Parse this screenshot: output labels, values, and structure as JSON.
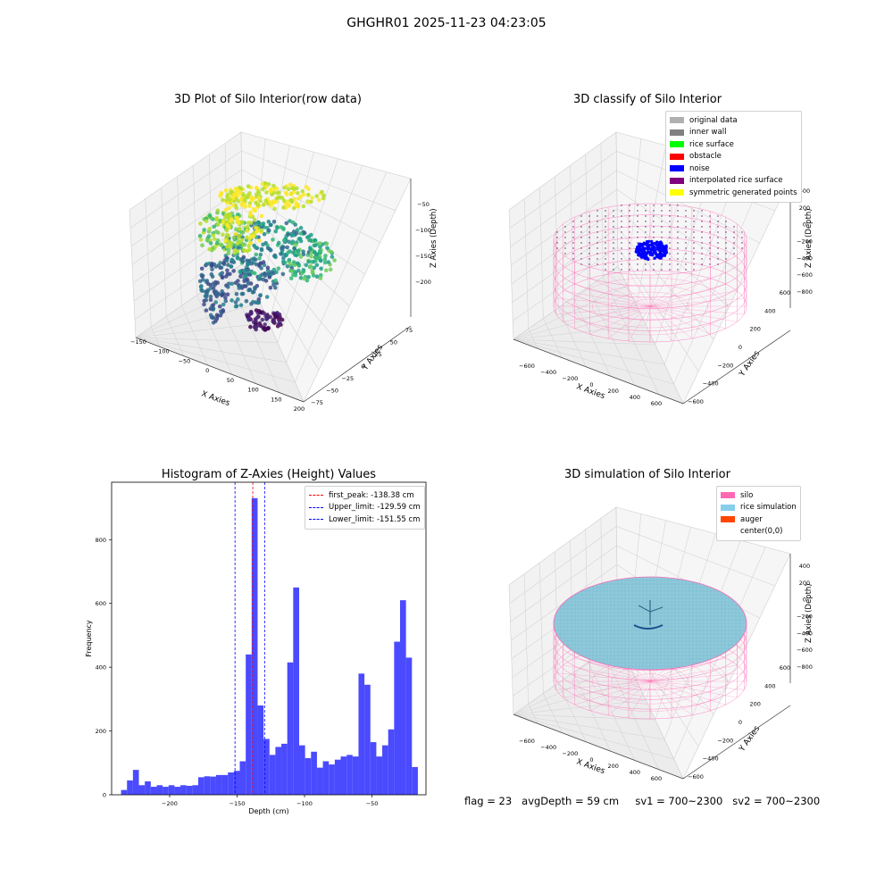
{
  "figure": {
    "title": "GHGHR01 2025-11-23 04:23:05"
  },
  "panel_raw": {
    "title": "3D Plot of Silo Interior(row data)",
    "xlabel": "X Axies",
    "ylabel": "Y Axies",
    "zlabel": "Z Axies (Depth)",
    "x_ticks": [
      "−150",
      "−100",
      "−50",
      "0",
      "50",
      "100",
      "150",
      "200"
    ],
    "y_ticks": [
      "−75",
      "−50",
      "−25",
      "0",
      "25",
      "50",
      "75"
    ],
    "z_ticks": [
      "−50",
      "−100",
      "−150",
      "−200"
    ],
    "colormap": "viridis"
  },
  "panel_classify": {
    "title": "3D classify of Silo Interior",
    "xlabel": "X Axies",
    "ylabel": "Y Axies",
    "zlabel": "Z Axies (Depth)",
    "x_ticks": [
      "−600",
      "−400",
      "−200",
      "0",
      "200",
      "400",
      "600"
    ],
    "y_ticks": [
      "−600",
      "−400",
      "−200",
      "0",
      "200",
      "400",
      "600"
    ],
    "z_ticks": [
      "400",
      "200",
      "0",
      "−200",
      "−400",
      "−600",
      "−800"
    ],
    "legend": [
      {
        "label": "original data",
        "color": "#b0b0b0"
      },
      {
        "label": "inner wall",
        "color": "#808080"
      },
      {
        "label": "rice surface",
        "color": "#00ff00"
      },
      {
        "label": "obstacle",
        "color": "#ff0000"
      },
      {
        "label": "noise",
        "color": "#0000ff"
      },
      {
        "label": "interpolated rice surface",
        "color": "#800080"
      },
      {
        "label": "symmetric generated points",
        "color": "#ffff00"
      }
    ]
  },
  "panel_hist": {
    "title": "Histogram of Z-Axies (Height) Values",
    "xlabel": "Depth (cm)",
    "ylabel": "Frequency",
    "legend": [
      {
        "label": "first_peak: -138.38 cm",
        "color": "#ff0000"
      },
      {
        "label": "Upper_limit: -129.59 cm",
        "color": "#0000ff"
      },
      {
        "label": "Lower_limit: -151.55 cm",
        "color": "#0000ff"
      }
    ]
  },
  "panel_sim": {
    "title": "3D simulation of Silo Interior",
    "xlabel": "X Axies",
    "ylabel": "Y Axies",
    "zlabel": "Z Axies (Depth)",
    "x_ticks": [
      "−600",
      "−400",
      "−200",
      "0",
      "200",
      "400",
      "600"
    ],
    "y_ticks": [
      "−600",
      "−400",
      "−200",
      "0",
      "200",
      "400",
      "600"
    ],
    "z_ticks": [
      "400",
      "200",
      "0",
      "−200",
      "−400",
      "−600",
      "−800"
    ],
    "legend": [
      {
        "label": "silo",
        "color": "#ff69b4"
      },
      {
        "label": "rice simulation",
        "color": "#87ceeb"
      },
      {
        "label": "auger",
        "color": "#ff4500"
      },
      {
        "label": "center(0,0)",
        "color": "#ffffff"
      }
    ]
  },
  "status": {
    "flag": "flag = 23",
    "avg_depth": "avgDepth = 59 cm",
    "sv1": "sv1 = 700~2300",
    "sv2": "sv2 = 700~2300"
  },
  "chart_data": {
    "type": "bar",
    "title": "Histogram of Z-Axies (Height) Values",
    "xlabel": "Depth (cm)",
    "ylabel": "Frequency",
    "xlim": [
      -243,
      -10
    ],
    "ylim": [
      0,
      980
    ],
    "x_ticks": [
      -200,
      -150,
      -100,
      -50
    ],
    "y_ticks": [
      0,
      200,
      400,
      600,
      800
    ],
    "bin_start": -236,
    "bin_width": 4.4,
    "values": [
      15,
      45,
      78,
      30,
      42,
      25,
      30,
      25,
      30,
      25,
      30,
      28,
      30,
      55,
      58,
      57,
      62,
      62,
      70,
      75,
      105,
      440,
      930,
      280,
      175,
      125,
      150,
      160,
      415,
      650,
      155,
      115,
      135,
      85,
      105,
      95,
      110,
      120,
      125,
      120,
      380,
      345,
      165,
      120,
      155,
      205,
      480,
      610,
      430,
      87
    ],
    "vlines": [
      {
        "label": "first_peak: -138.38 cm",
        "x": -138.38,
        "color": "#ff0000"
      },
      {
        "label": "Upper_limit: -129.59 cm",
        "x": -129.59,
        "color": "#0000ff"
      },
      {
        "label": "Lower_limit: -151.55 cm",
        "x": -151.55,
        "color": "#0000ff"
      }
    ],
    "bar_color": "#4a4aff"
  }
}
